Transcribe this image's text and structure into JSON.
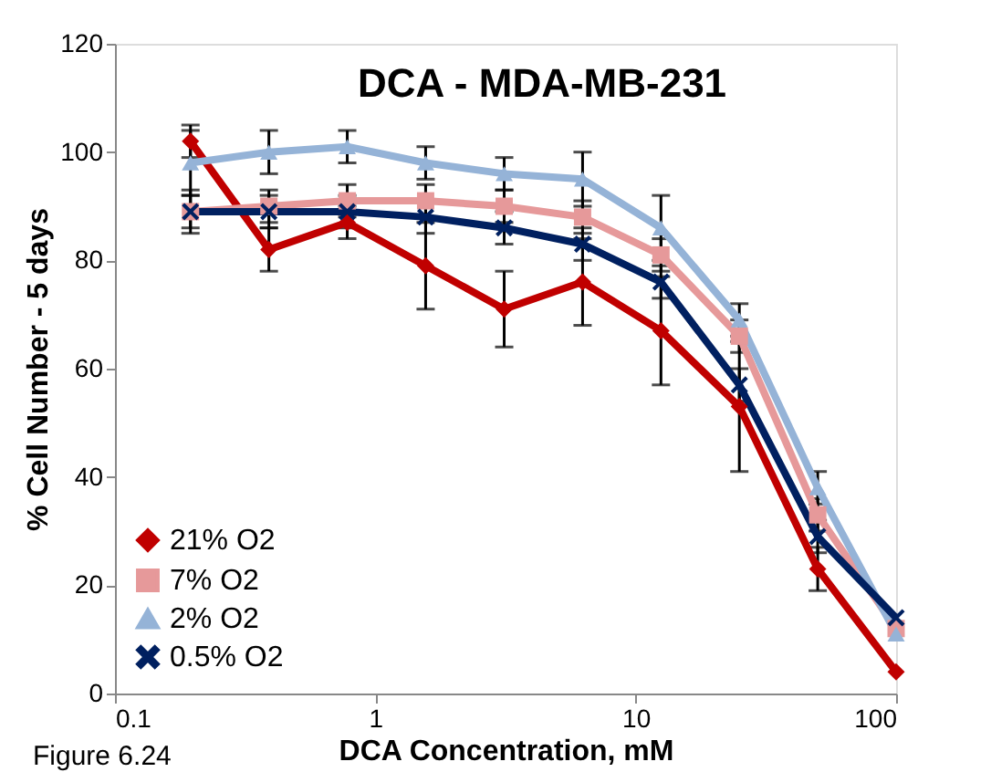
{
  "chart_data": {
    "type": "line",
    "title": "DCA - MDA-MB-231",
    "xlabel": "DCA Concentration,  mM",
    "ylabel": "% Cell Number - 5 days",
    "x": [
      0.195,
      0.39,
      0.78,
      1.56,
      3.125,
      6.25,
      12.5,
      25,
      50,
      100
    ],
    "series": [
      {
        "name": "21% O2",
        "color": "#c00000",
        "marker": "diamond",
        "values": [
          102,
          82,
          87,
          79,
          71,
          76,
          67,
          53,
          23,
          4
        ],
        "errors": [
          3,
          4,
          3,
          8,
          7,
          8,
          10,
          12,
          4,
          null
        ]
      },
      {
        "name": "7% O2",
        "color": "#e6999a",
        "marker": "square",
        "values": [
          89,
          90,
          91,
          91,
          90,
          88,
          81,
          66,
          33,
          12
        ],
        "errors": [
          3,
          3,
          3,
          3,
          3,
          3,
          3,
          3,
          3,
          null
        ]
      },
      {
        "name": "2% O2",
        "color": "#95b3d7",
        "marker": "triangle",
        "values": [
          98,
          100,
          101,
          98,
          96,
          95,
          86,
          69,
          38,
          11
        ],
        "errors": [
          6,
          4,
          3,
          3,
          3,
          5,
          6,
          3,
          3,
          null
        ]
      },
      {
        "name": "0.5% O2",
        "color": "#002060",
        "marker": "cross",
        "values": [
          89,
          89,
          89,
          88,
          86,
          83,
          76,
          57,
          29,
          14
        ],
        "errors": [
          4,
          3,
          3,
          3,
          3,
          3,
          3,
          3,
          3,
          null
        ]
      }
    ],
    "log": "x",
    "xlim": [
      0.1,
      100
    ],
    "xticks": [
      0.1,
      1,
      10,
      100
    ],
    "ylim": [
      0,
      120
    ],
    "yticks": [
      0,
      20,
      40,
      60,
      80,
      100,
      120
    ],
    "grid": false,
    "legend": "bottom left",
    "line_style": "solid",
    "annotations": [
      "Figure 6.24"
    ]
  }
}
